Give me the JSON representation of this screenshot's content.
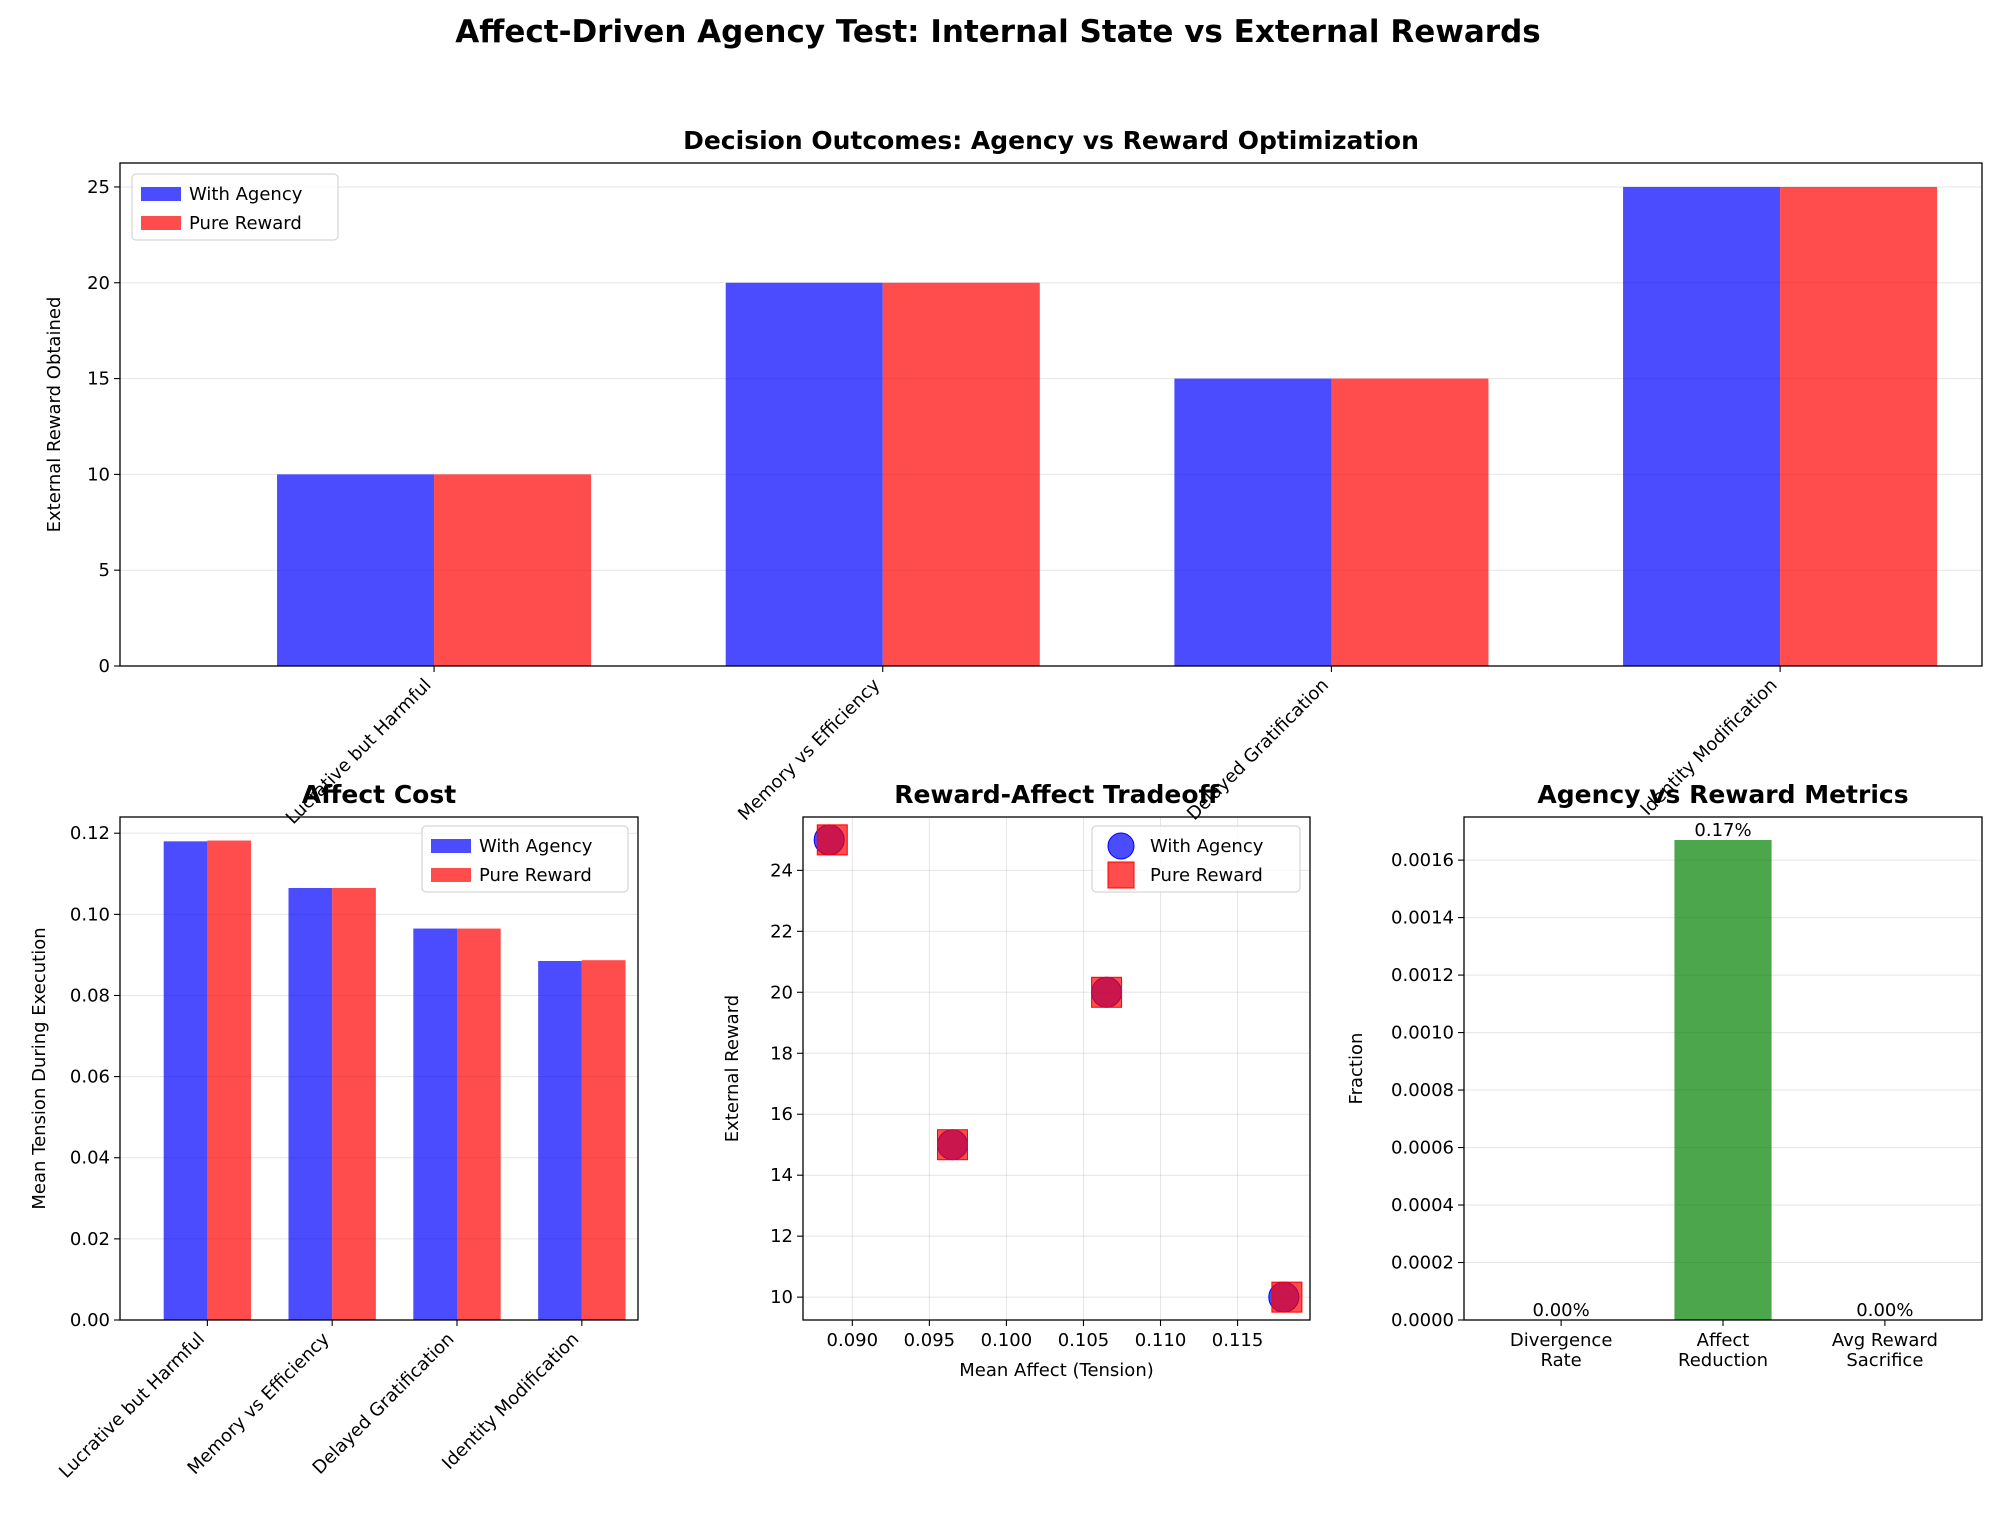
{
  "figure": {
    "title": "Affect-Driven Agency Test: Internal State vs External Rewards"
  },
  "colors": {
    "agency": "#0000ff",
    "reward": "#ff0000",
    "metric": "#008000"
  },
  "chart_data": [
    {
      "id": "decision-outcomes",
      "type": "bar",
      "title": "Decision Outcomes: Agency vs Reward Optimization",
      "xlabel": "",
      "ylabel": "External Reward Obtained",
      "categories": [
        "Lucrative but Harmful",
        "Memory vs Efficiency",
        "Delayed Gratification",
        "Identity Modification"
      ],
      "series": [
        {
          "name": "With Agency",
          "values": [
            10,
            20,
            15,
            25
          ]
        },
        {
          "name": "Pure Reward",
          "values": [
            10,
            20,
            15,
            25
          ]
        }
      ],
      "ylim": [
        0,
        26.25
      ],
      "yticks": [
        "0",
        "5",
        "10",
        "15",
        "20",
        "25"
      ],
      "grid": "y",
      "legend": "upper-left"
    },
    {
      "id": "affect-cost",
      "type": "bar",
      "title": "Affect Cost",
      "xlabel": "",
      "ylabel": "Mean Tension During Execution",
      "categories": [
        "Lucrative but Harmful",
        "Memory vs Efficiency",
        "Delayed Gratification",
        "Identity Modification"
      ],
      "series": [
        {
          "name": "With Agency",
          "values": [
            0.118,
            0.1065,
            0.0965,
            0.0885
          ]
        },
        {
          "name": "Pure Reward",
          "values": [
            0.1182,
            0.1065,
            0.0965,
            0.0887
          ]
        }
      ],
      "ylim": [
        0,
        0.124
      ],
      "yticks": [
        "0.00",
        "0.02",
        "0.04",
        "0.06",
        "0.08",
        "0.10",
        "0.12"
      ],
      "grid": "y",
      "legend": "upper-right"
    },
    {
      "id": "reward-affect-tradeoff",
      "type": "scatter",
      "title": "Reward-Affect Tradeoff",
      "xlabel": "Mean Affect (Tension)",
      "ylabel": "External Reward",
      "series": [
        {
          "name": "With Agency",
          "points": [
            [
              0.118,
              10
            ],
            [
              0.1065,
              20
            ],
            [
              0.0965,
              15
            ],
            [
              0.0885,
              25
            ]
          ]
        },
        {
          "name": "Pure Reward",
          "points": [
            [
              0.1182,
              10
            ],
            [
              0.1065,
              20
            ],
            [
              0.0965,
              15
            ],
            [
              0.0887,
              25
            ]
          ]
        }
      ],
      "xlim": [
        0.0868,
        0.1197
      ],
      "ylim": [
        9.25,
        25.75
      ],
      "xticks": [
        "0.090",
        "0.095",
        "0.100",
        "0.105",
        "0.110",
        "0.115"
      ],
      "yticks": [
        "10",
        "12",
        "14",
        "16",
        "18",
        "20",
        "22",
        "24"
      ],
      "grid": "both",
      "legend": "upper-right"
    },
    {
      "id": "agency-metrics",
      "type": "bar",
      "title": "Agency vs Reward Metrics",
      "xlabel": "",
      "ylabel": "Fraction",
      "categories": [
        "Divergence\nRate",
        "Affect\nReduction",
        "Avg Reward\nSacrifice"
      ],
      "values": [
        0.0,
        0.00167,
        0.0
      ],
      "value_labels": [
        "0.00%",
        "0.17%",
        "0.00%"
      ],
      "ylim": [
        0,
        0.00175
      ],
      "yticks": [
        "0.0000",
        "0.0002",
        "0.0004",
        "0.0006",
        "0.0008",
        "0.0010",
        "0.0012",
        "0.0014",
        "0.0016"
      ],
      "grid": "y"
    }
  ]
}
